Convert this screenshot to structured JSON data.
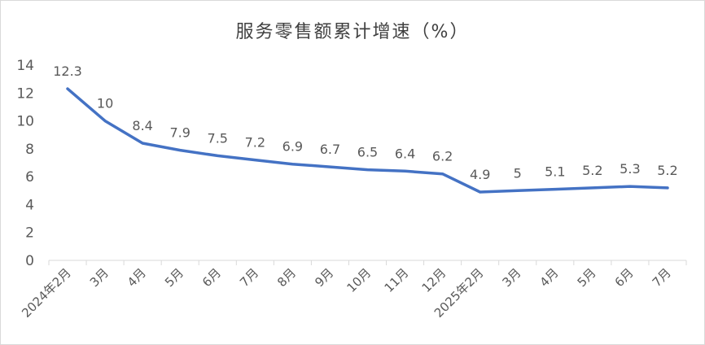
{
  "chart_data": {
    "type": "line",
    "title": "服务零售额累计增速（%）",
    "xlabel": "",
    "ylabel": "",
    "categories": [
      "2024年2月",
      "3月",
      "4月",
      "5月",
      "6月",
      "7月",
      "8月",
      "9月",
      "10月",
      "11月",
      "12月",
      "2025年2月",
      "3月",
      "4月",
      "5月",
      "6月",
      "7月"
    ],
    "series": [
      {
        "values": [
          12.3,
          10,
          8.4,
          7.9,
          7.5,
          7.2,
          6.9,
          6.7,
          6.5,
          6.4,
          6.2,
          4.9,
          5,
          5.1,
          5.2,
          5.3,
          5.2
        ]
      }
    ],
    "value_labels": [
      "12.3",
      "10",
      "8.4",
      "7.9",
      "7.5",
      "7.2",
      "6.9",
      "6.7",
      "6.5",
      "6.4",
      "6.2",
      "4.9",
      "5",
      "5.1",
      "5.2",
      "5.3",
      "5.2"
    ],
    "ylim": [
      0,
      14
    ],
    "yticks": [
      "0",
      "2",
      "4",
      "6",
      "8",
      "10",
      "12",
      "14"
    ],
    "grid": false,
    "legend": "none",
    "line_color": "#4472c4",
    "axis_color": "#d9d9d9",
    "text_color": "#595959"
  }
}
